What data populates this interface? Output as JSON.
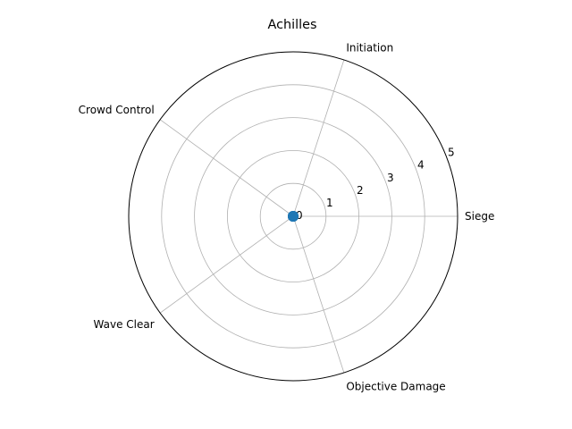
{
  "chart_data": {
    "type": "radar",
    "title": "Achilles",
    "categories": [
      "Siege",
      "Initiation",
      "Crowd Control",
      "Wave Clear",
      "Objective Damage"
    ],
    "series": [
      {
        "values": [
          0,
          0,
          0,
          0,
          0
        ],
        "color": "#1f77b4"
      }
    ],
    "rlim": [
      0,
      5
    ],
    "rticks": [
      "0",
      "1",
      "2",
      "3",
      "4",
      "5"
    ],
    "grid": true
  }
}
